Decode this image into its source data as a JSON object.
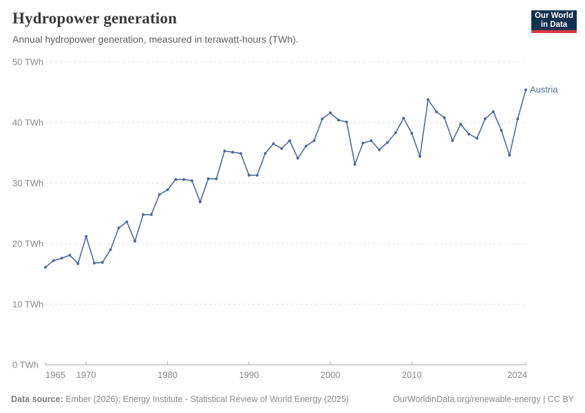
{
  "header": {
    "title": "Hydropower generation",
    "subtitle": "Annual hydropower generation, measured in terawatt-hours (TWh).",
    "logo_line1": "Our World",
    "logo_line2": "in Data"
  },
  "chart_data": {
    "type": "line",
    "title": "Hydropower generation",
    "ylabel": "",
    "xlabel": "",
    "unit": "TWh",
    "entity_label": "Austria",
    "ylim": [
      0,
      50
    ],
    "yticks": [
      0,
      10,
      20,
      30,
      40,
      50
    ],
    "ytick_format": "{v} TWh",
    "xticks": [
      1965,
      1970,
      1980,
      1990,
      2000,
      2010,
      2024
    ],
    "grid": "dashed-horizontal",
    "legend_position": "end-of-line-label",
    "line_color": "#4C6A9C",
    "x": [
      1965,
      1966,
      1967,
      1968,
      1969,
      1970,
      1971,
      1972,
      1973,
      1974,
      1975,
      1976,
      1977,
      1978,
      1979,
      1980,
      1981,
      1982,
      1983,
      1984,
      1985,
      1986,
      1987,
      1988,
      1989,
      1990,
      1991,
      1992,
      1993,
      1994,
      1995,
      1996,
      1997,
      1998,
      1999,
      2000,
      2001,
      2002,
      2003,
      2004,
      2005,
      2006,
      2007,
      2008,
      2009,
      2010,
      2011,
      2012,
      2013,
      2014,
      2015,
      2016,
      2017,
      2018,
      2019,
      2020,
      2021,
      2022,
      2023,
      2024
    ],
    "series": [
      {
        "name": "Austria",
        "values": [
          16.1,
          17.2,
          17.6,
          18.1,
          16.7,
          21.2,
          16.8,
          16.9,
          19.0,
          22.6,
          23.6,
          20.4,
          24.8,
          24.8,
          28.1,
          28.9,
          30.6,
          30.6,
          30.4,
          26.9,
          30.7,
          30.7,
          35.3,
          35.1,
          34.9,
          31.3,
          31.3,
          34.9,
          36.5,
          35.7,
          37.0,
          34.1,
          36.1,
          37.0,
          40.6,
          41.6,
          40.4,
          40.1,
          33.1,
          36.6,
          37.0,
          35.5,
          36.7,
          38.3,
          40.7,
          38.2,
          34.4,
          43.8,
          41.8,
          40.8,
          37.0,
          39.7,
          38.1,
          37.4,
          40.6,
          41.8,
          38.7,
          34.6,
          40.6,
          45.4
        ]
      }
    ]
  },
  "footer": {
    "source_label": "Data source:",
    "source_text": " Ember (2026); Energy Institute - Statistical Review of World Energy (2025)",
    "right_text": "OurWorldinData.org/renewable-energy | CC BY"
  },
  "colors": {
    "line": "#4C6A9C",
    "gridline": "#dcdcdc",
    "axis": "#a3a3a3",
    "tick_label": "#878787",
    "logo_bg": "#12304f",
    "logo_red": "#d93b42"
  }
}
